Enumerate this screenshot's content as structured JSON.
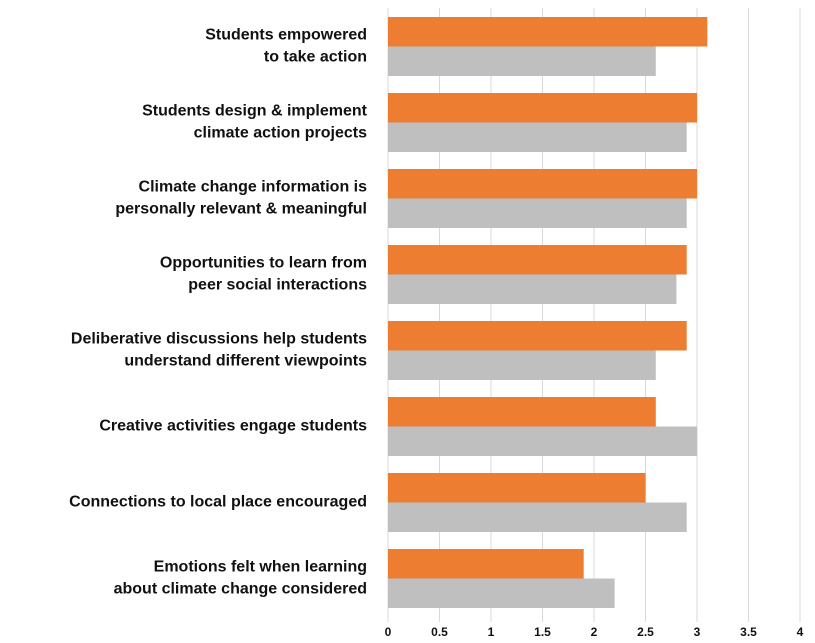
{
  "chart_data": {
    "type": "barh",
    "categories": [
      [
        "Students empowered",
        "to take action"
      ],
      [
        "Students design & implement",
        "climate action projects"
      ],
      [
        "Climate change information is",
        "personally relevant & meaningful"
      ],
      [
        "Opportunities to learn from",
        "peer social interactions"
      ],
      [
        "Deliberative discussions help students",
        "understand different viewpoints"
      ],
      [
        "Creative activities engage students"
      ],
      [
        "Connections to local place encouraged"
      ],
      [
        "Emotions felt when learning",
        "about climate change considered"
      ]
    ],
    "series": [
      {
        "color": "#ed7d31",
        "values": [
          3.1,
          3.0,
          3.0,
          2.9,
          2.9,
          2.6,
          2.5,
          1.9
        ]
      },
      {
        "color": "#bfbfbf",
        "values": [
          2.6,
          2.9,
          2.9,
          2.8,
          2.6,
          3.0,
          2.9,
          2.2
        ]
      }
    ],
    "xlim": [
      0,
      4
    ],
    "xticks": [
      0,
      0.5,
      1,
      1.5,
      2,
      2.5,
      3,
      3.5,
      4
    ],
    "grid": true
  }
}
